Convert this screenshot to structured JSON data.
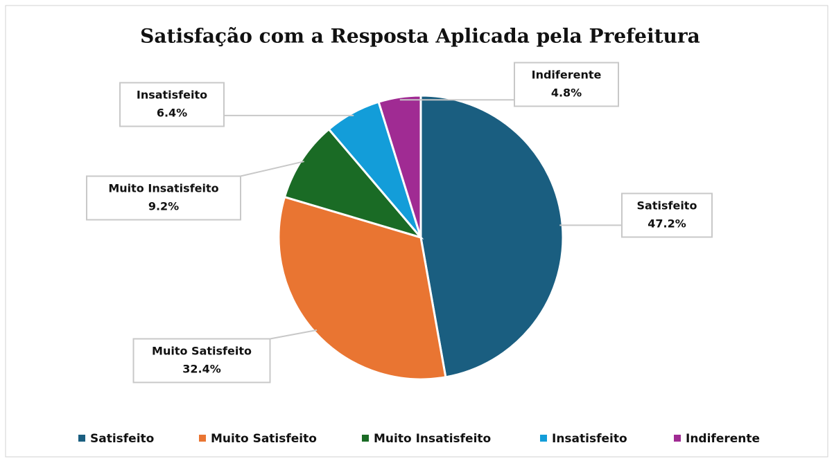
{
  "chart_data": {
    "type": "pie",
    "title": "Satisfação com a Resposta Aplicada pela Prefeitura",
    "categories": [
      "Satisfeito",
      "Muito Satisfeito",
      "Muito Insatisfeito",
      "Insatisfeito",
      "Indiferente"
    ],
    "values": [
      47.2,
      32.4,
      9.2,
      6.4,
      4.8
    ],
    "value_labels": [
      "47.2%",
      "32.4%",
      "9.2%",
      "6.4%",
      "4.8%"
    ],
    "colors": [
      "#1a5e80",
      "#e97532",
      "#1a6b25",
      "#139dd9",
      "#a02b93"
    ],
    "legend": "bottom"
  }
}
